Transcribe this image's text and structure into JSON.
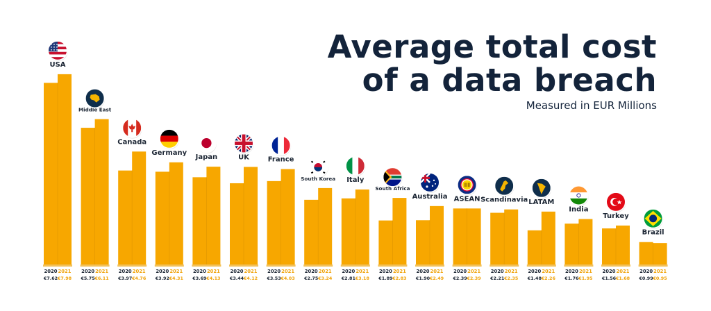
{
  "colors": {
    "bar": "#F7A700",
    "bar_edge": "#E59A00",
    "text_dark": "#1B2533",
    "year_2021": "#F0A30A",
    "badge_navy": "#0F2E4B",
    "baseline": "#F2C15A"
  },
  "chart_data": {
    "type": "bar",
    "title": "Average total cost of a data breach",
    "title_lines": [
      "Average total cost",
      "of a data breach"
    ],
    "subtitle": "Measured in EUR Millions",
    "unit": "EUR Millions",
    "ylim": [
      0,
      8.5
    ],
    "grid": false,
    "legend": "none",
    "categories": [
      "USA",
      "Middle East",
      "Canada",
      "Germany",
      "Japan",
      "UK",
      "France",
      "South Korea",
      "Italy",
      "South Africa",
      "Australia",
      "ASEAN",
      "Scandinavia",
      "LATAM",
      "India",
      "Turkey",
      "Brazil"
    ],
    "category_icons": [
      "usa-flag-icon",
      "middle-east-map-icon",
      "canada-flag-icon",
      "germany-flag-icon",
      "japan-flag-icon",
      "uk-flag-icon",
      "france-flag-icon",
      "south-korea-flag-icon",
      "italy-flag-icon",
      "south-africa-flag-icon",
      "australia-flag-icon",
      "asean-emblem-icon",
      "scandinavia-map-icon",
      "latam-map-icon",
      "india-flag-icon",
      "turkey-flag-icon",
      "brazil-flag-icon"
    ],
    "years": [
      "2020",
      "2021"
    ],
    "series": [
      {
        "name": "2020",
        "values": [
          7.62,
          5.75,
          3.97,
          3.92,
          3.69,
          3.44,
          3.53,
          2.75,
          2.81,
          1.89,
          1.9,
          2.39,
          2.21,
          1.48,
          1.76,
          1.56,
          0.99
        ]
      },
      {
        "name": "2021",
        "values": [
          7.98,
          6.11,
          4.76,
          4.31,
          4.13,
          4.12,
          4.03,
          3.24,
          3.18,
          2.83,
          2.49,
          2.39,
          2.35,
          2.26,
          1.95,
          1.68,
          0.95
        ]
      }
    ],
    "value_labels": [
      [
        "€7.62",
        "€7.98"
      ],
      [
        "€5.75",
        "€6.11"
      ],
      [
        "€3.97",
        "€4.76"
      ],
      [
        "€3.92",
        "€4.31"
      ],
      [
        "€3.69",
        "€4.13"
      ],
      [
        "€3.44",
        "€4.12"
      ],
      [
        "€3.53",
        "€4.03"
      ],
      [
        "€2.75",
        "€3.24"
      ],
      [
        "€2.81",
        "€3.18"
      ],
      [
        "€1.89",
        "€2.83"
      ],
      [
        "€1.90",
        "€2.49"
      ],
      [
        "€2.39",
        "€2.39"
      ],
      [
        "€2.21",
        "€2.35"
      ],
      [
        "€1.48",
        "€2.26"
      ],
      [
        "€1.76",
        "€1.95"
      ],
      [
        "€1.56",
        "€1.68"
      ],
      [
        "€0.99",
        "€0.95"
      ]
    ]
  }
}
